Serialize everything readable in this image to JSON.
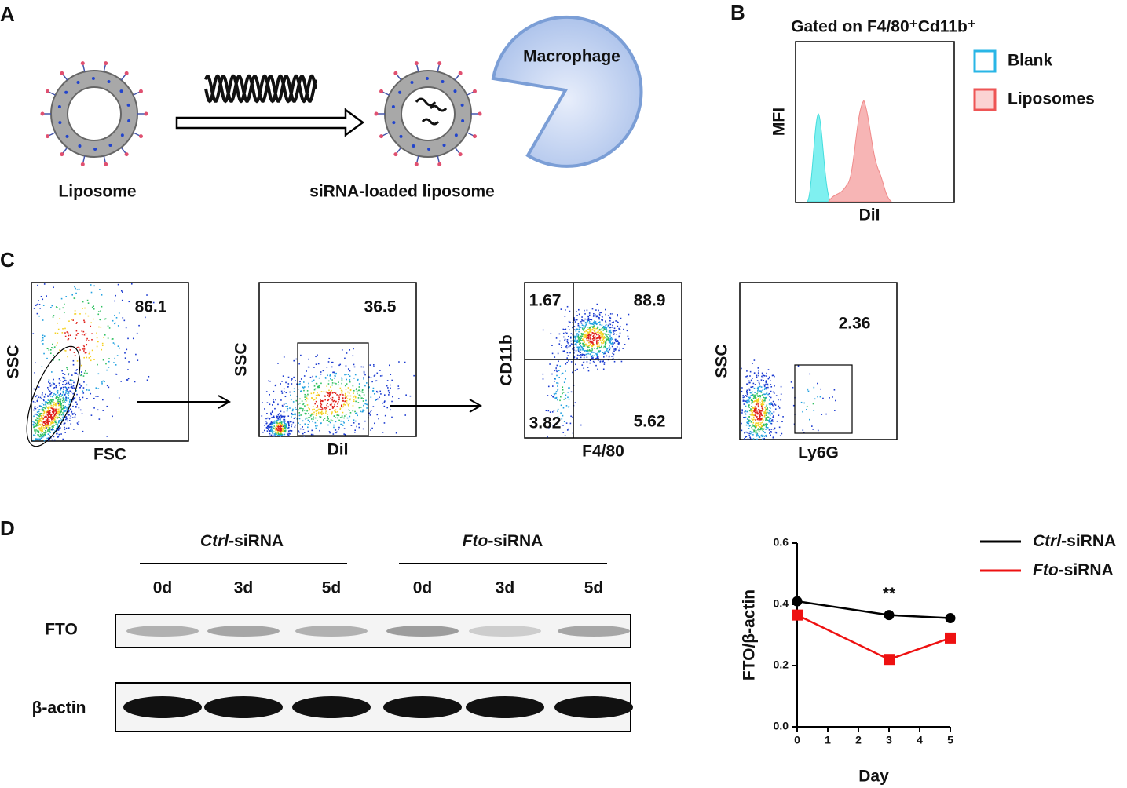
{
  "panel_a": {
    "letter": "A",
    "liposome": "Liposome",
    "loaded": "siRNA-loaded liposome",
    "cell": "Macrophage"
  },
  "panel_b": {
    "letter": "B",
    "title": "Gated on F4/80⁺Cd11b⁺",
    "y_label": "MFI",
    "x_label": "DiI",
    "legend": [
      "Blank",
      "Liposomes"
    ]
  },
  "panel_c": {
    "letter": "C",
    "plots": [
      {
        "x_label": "FSC",
        "y_label": "SSC",
        "values": [
          86.1
        ]
      },
      {
        "x_label": "DiI",
        "y_label": "SSC",
        "values": [
          36.5
        ]
      },
      {
        "x_label": "F4/80",
        "y_label": "CD11b",
        "values": [
          1.67,
          88.9,
          3.82,
          5.62
        ]
      },
      {
        "x_label": "Ly6G",
        "y_label": "SSC",
        "values": [
          2.36
        ]
      }
    ]
  },
  "panel_d": {
    "letter": "D",
    "groups": [
      "Ctrl-siRNA",
      "Fto-siRNA"
    ],
    "days": [
      "0d",
      "3d",
      "5d",
      "0d",
      "3d",
      "5d"
    ],
    "rows": [
      "FTO",
      "β-actin"
    ]
  },
  "chart_data": {
    "type": "line",
    "x": [
      0,
      3,
      5
    ],
    "series": [
      {
        "name": "Ctrl-siRNA",
        "color": "#000000",
        "values": [
          0.41,
          0.365,
          0.355
        ]
      },
      {
        "name": "Fto-siRNA",
        "color": "#ee1111",
        "values": [
          0.365,
          0.22,
          0.29
        ]
      }
    ],
    "xlim": [
      0,
      5
    ],
    "xticks": [
      0,
      1,
      2,
      3,
      4,
      5
    ],
    "ylim": [
      0,
      0.6
    ],
    "yticks": [
      {
        "value": 0,
        "label": "0.0"
      },
      0.2,
      0.4,
      0.6
    ],
    "x_label": "Day",
    "y_label": "FTO/β-actin",
    "annotation": "**",
    "annotation_x": 3
  }
}
